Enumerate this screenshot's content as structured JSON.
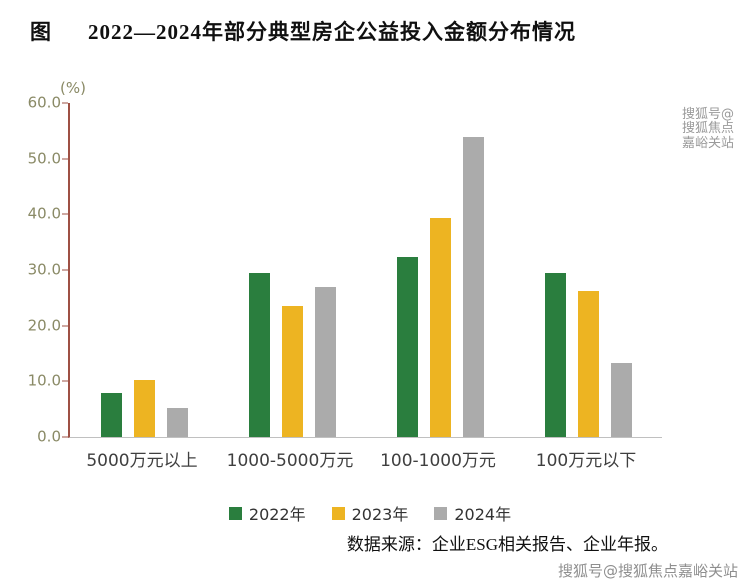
{
  "title": {
    "prefix": "图",
    "text": "2022—2024年部分典型房企公益投入金额分布情况"
  },
  "source": "数据来源：企业ESG相关报告、企业年报。",
  "watermark": {
    "top": "搜狐号@搜狐焦点嘉峪关站",
    "bottom": "搜狐号@搜狐焦点嘉峪关站"
  },
  "chart_data": {
    "type": "bar",
    "title": "2022—2024年部分典型房企公益投入金额分布情况",
    "unit_label": "(%)",
    "categories": [
      "5000万元以上",
      "1000-5000万元",
      "100-1000万元",
      "100万元以下"
    ],
    "series": [
      {
        "name": "2022年",
        "color": "#2a7e3e",
        "values": [
          7.9,
          29.5,
          32.4,
          29.5
        ]
      },
      {
        "name": "2023年",
        "color": "#edb422",
        "values": [
          10.3,
          23.5,
          39.4,
          26.2
        ]
      },
      {
        "name": "2024年",
        "color": "#ababab",
        "values": [
          5.3,
          26.9,
          53.9,
          13.3
        ]
      }
    ],
    "ylim": [
      0,
      60
    ],
    "ytick_step": 10,
    "ytick_labels": [
      "0.0",
      "10.0",
      "20.0",
      "30.0",
      "40.0",
      "50.0",
      "60.0"
    ],
    "grid": false,
    "legend_position": "bottom",
    "colors": {
      "axis_y": "#9e5044",
      "axis_x": "#c0c0c0",
      "tick_label": "#8a8a66"
    }
  }
}
